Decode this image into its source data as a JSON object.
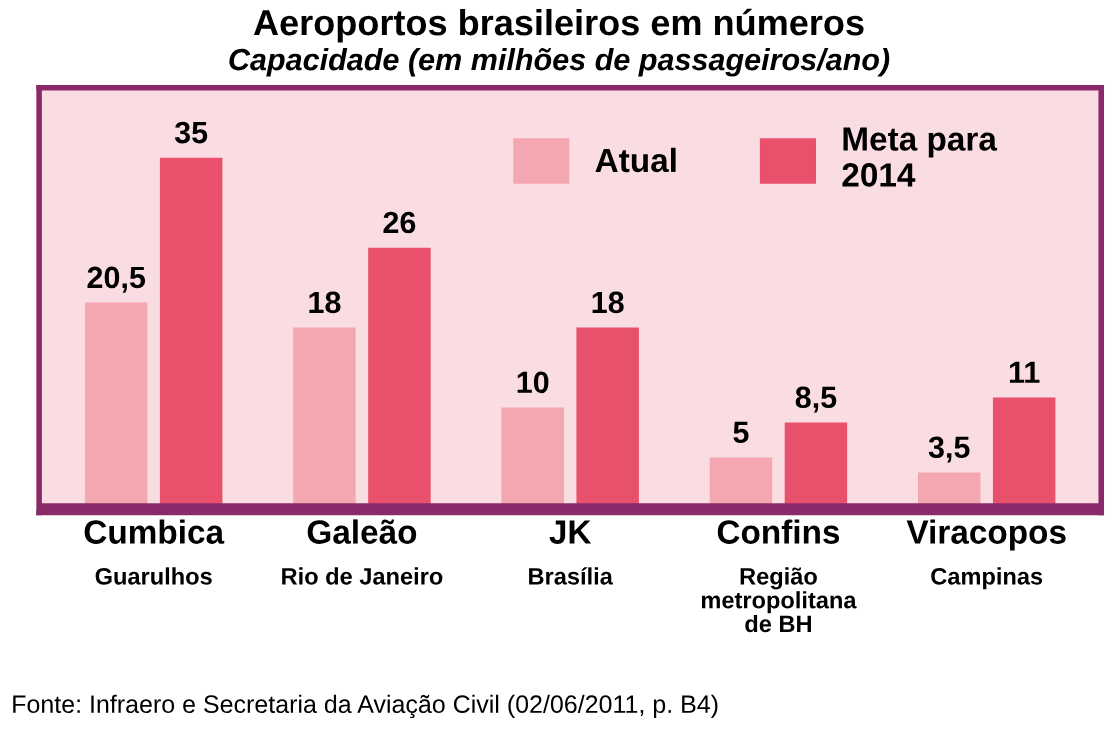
{
  "chart_data": {
    "type": "bar",
    "title": "Aeroportos brasileiros em números",
    "subtitle": "Capacidade (em milhões de passageiros/ano)",
    "categories": [
      "Cumbica\nGuarulhos",
      "Galeão\nRio de Janeiro",
      "JK\nBrasília",
      "Confins\nRegião\nmetropolitana\nde BH",
      "Viracopos\nCampinas"
    ],
    "series": [
      {
        "name": "Atual",
        "color": "#f4a7b0",
        "values": [
          20.5,
          18,
          10,
          5,
          3.5
        ],
        "value_labels": [
          "20,5",
          "18",
          "10",
          "5",
          "3,5"
        ]
      },
      {
        "name": "Meta para\n2014",
        "color": "#e8506c",
        "values": [
          35,
          26,
          18,
          8.5,
          11
        ],
        "value_labels": [
          "35",
          "26",
          "18",
          "8,5",
          "11"
        ]
      }
    ],
    "legend": "top right",
    "annotations": [
      "Fonte: Infraero e Secretaria da Aviação Civil (02/06/2011, p. B4)"
    ]
  }
}
